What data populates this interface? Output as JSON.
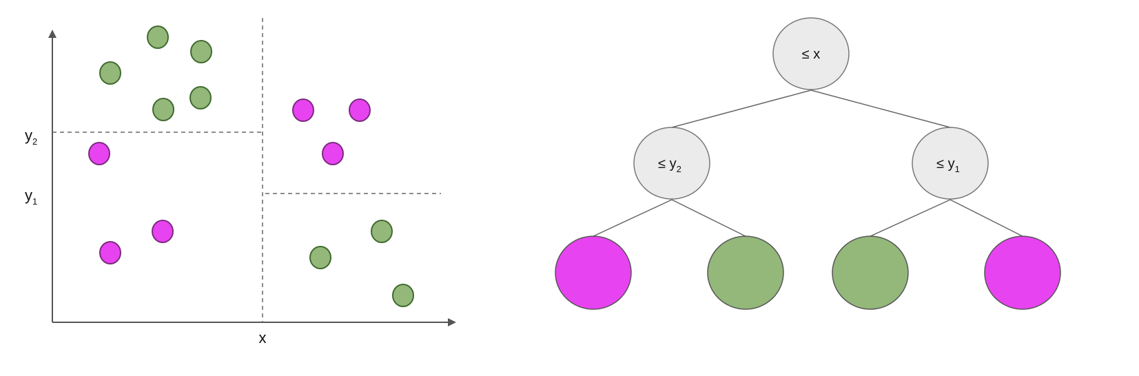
{
  "colors": {
    "class_a": "#e843f0",
    "class_a_stroke": "#7b2a7e",
    "class_b": "#93b87a",
    "class_b_stroke": "#3f6a2e",
    "node_fill": "#ebebeb",
    "node_stroke": "#777777",
    "axis": "#555555",
    "dashed": "#666666"
  },
  "scatter": {
    "x_label": "x",
    "y1_label": {
      "base": "y",
      "sub": "1"
    },
    "y2_label": {
      "base": "y",
      "sub": "2"
    },
    "points": [
      "b",
      "b",
      "b",
      "b",
      "b",
      "b",
      "b",
      "b",
      "a",
      "a",
      "a",
      "a",
      "a",
      "a"
    ]
  },
  "tree": {
    "root": {
      "prefix": "≤ ",
      "var": "x",
      "sub": ""
    },
    "left": {
      "prefix": "≤ ",
      "var": "y",
      "sub": "2"
    },
    "right": {
      "prefix": "≤ ",
      "var": "y",
      "sub": "1"
    },
    "leaves": [
      "a",
      "b",
      "b",
      "a"
    ]
  }
}
